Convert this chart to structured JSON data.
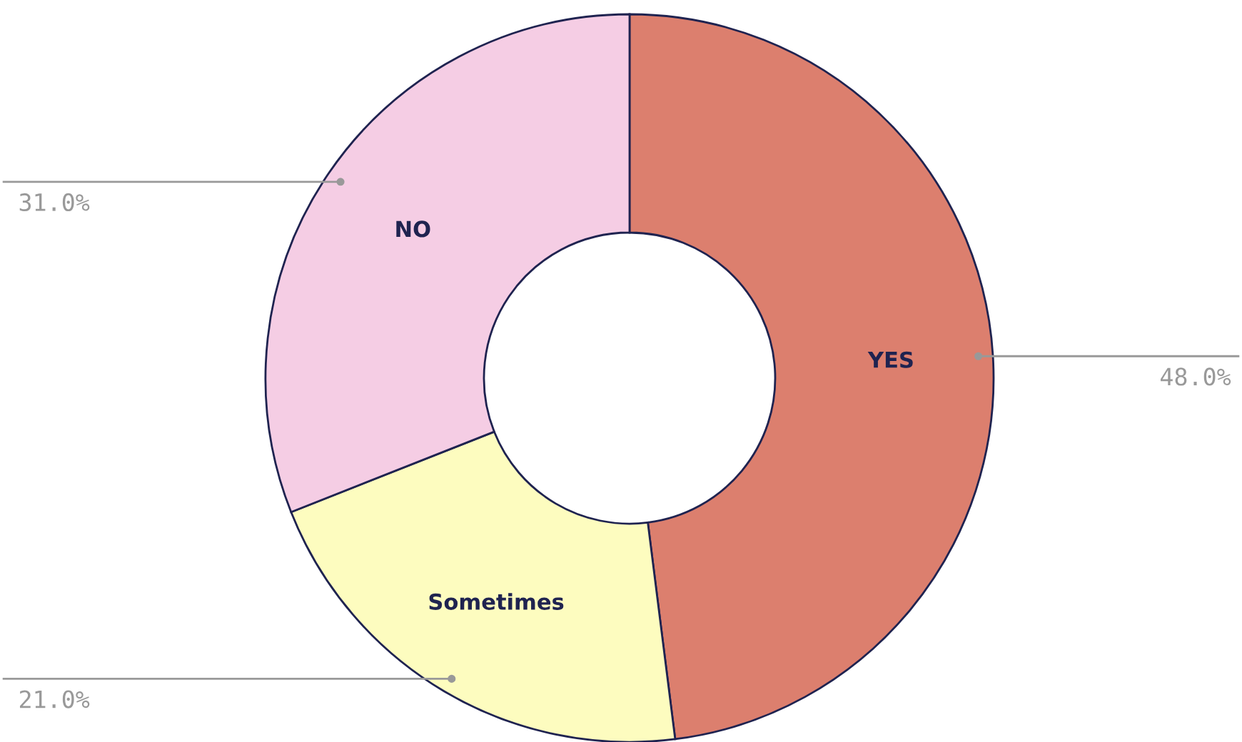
{
  "chart_data": {
    "type": "donut",
    "categories": [
      "YES",
      "Sometimes",
      "NO"
    ],
    "values": [
      48,
      21,
      31
    ],
    "colors": [
      "#dc7f6e",
      "#fdfcbf",
      "#f5cde4"
    ],
    "value_labels": [
      "48.0%",
      "21.0%",
      "31.0%"
    ]
  }
}
